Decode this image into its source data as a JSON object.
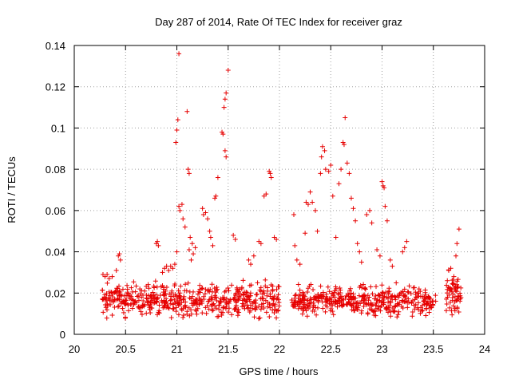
{
  "chart_data": {
    "type": "scatter",
    "title": "Day 287 of 2014, Rate Of TEC Index for receiver graz",
    "xlabel": "GPS time / hours",
    "ylabel": "ROTI / TECUs",
    "xlim": [
      20,
      24
    ],
    "ylim": [
      0,
      0.14
    ],
    "grid": true,
    "marker": "+",
    "color": "#e60000",
    "xticks": [
      20,
      20.5,
      21,
      21.5,
      22,
      22.5,
      23,
      23.5,
      24
    ],
    "xtick_labels": [
      "20",
      "20.5",
      "21",
      "21.5",
      "22",
      "22.5",
      "23",
      "23.5",
      "24"
    ],
    "yticks": [
      0,
      0.02,
      0.04,
      0.06,
      0.08,
      0.1,
      0.12,
      0.14
    ],
    "ytick_labels": [
      "0",
      "0.02",
      "0.04",
      "0.06",
      "0.08",
      "0.1",
      "0.12",
      "0.14"
    ],
    "clusters": [
      {
        "x_start": 20.27,
        "x_end": 22.0,
        "y_low": 0.005,
        "y_high": 0.028,
        "count": 520
      },
      {
        "x_start": 22.12,
        "x_end": 23.53,
        "y_low": 0.007,
        "y_high": 0.026,
        "count": 440
      },
      {
        "x_start": 23.62,
        "x_end": 23.77,
        "y_low": 0.003,
        "y_high": 0.033,
        "count": 60
      }
    ],
    "series": [
      {
        "name": "ROTI peaks",
        "points": [
          [
            20.28,
            0.029
          ],
          [
            20.3,
            0.028
          ],
          [
            20.32,
            0.029
          ],
          [
            20.34,
            0.027
          ],
          [
            20.37,
            0.028
          ],
          [
            20.43,
            0.038
          ],
          [
            20.44,
            0.039
          ],
          [
            20.45,
            0.036
          ],
          [
            20.41,
            0.031
          ],
          [
            20.8,
            0.044
          ],
          [
            20.81,
            0.045
          ],
          [
            20.82,
            0.043
          ],
          [
            20.86,
            0.03
          ],
          [
            20.88,
            0.032
          ],
          [
            20.9,
            0.033
          ],
          [
            20.92,
            0.031
          ],
          [
            20.94,
            0.033
          ],
          [
            20.96,
            0.032
          ],
          [
            20.98,
            0.034
          ],
          [
            21.0,
            0.04
          ],
          [
            20.99,
            0.093
          ],
          [
            21.0,
            0.099
          ],
          [
            21.01,
            0.104
          ],
          [
            21.02,
            0.136
          ],
          [
            21.02,
            0.062
          ],
          [
            21.03,
            0.06
          ],
          [
            21.05,
            0.063
          ],
          [
            21.06,
            0.056
          ],
          [
            21.08,
            0.052
          ],
          [
            21.1,
            0.108
          ],
          [
            21.11,
            0.08
          ],
          [
            21.12,
            0.078
          ],
          [
            21.13,
            0.047
          ],
          [
            21.15,
            0.044
          ],
          [
            21.12,
            0.041
          ],
          [
            21.14,
            0.036
          ],
          [
            21.16,
            0.039
          ],
          [
            21.18,
            0.042
          ],
          [
            21.25,
            0.061
          ],
          [
            21.26,
            0.058
          ],
          [
            21.28,
            0.059
          ],
          [
            21.3,
            0.056
          ],
          [
            21.32,
            0.05
          ],
          [
            21.33,
            0.047
          ],
          [
            21.35,
            0.043
          ],
          [
            21.37,
            0.066
          ],
          [
            21.38,
            0.067
          ],
          [
            21.4,
            0.076
          ],
          [
            21.44,
            0.098
          ],
          [
            21.45,
            0.097
          ],
          [
            21.46,
            0.11
          ],
          [
            21.47,
            0.114
          ],
          [
            21.48,
            0.117
          ],
          [
            21.5,
            0.128
          ],
          [
            21.47,
            0.089
          ],
          [
            21.48,
            0.086
          ],
          [
            21.55,
            0.048
          ],
          [
            21.57,
            0.046
          ],
          [
            21.7,
            0.036
          ],
          [
            21.72,
            0.034
          ],
          [
            21.75,
            0.038
          ],
          [
            21.8,
            0.045
          ],
          [
            21.82,
            0.044
          ],
          [
            21.85,
            0.067
          ],
          [
            21.87,
            0.068
          ],
          [
            21.9,
            0.079
          ],
          [
            21.91,
            0.078
          ],
          [
            21.92,
            0.076
          ],
          [
            21.95,
            0.047
          ],
          [
            21.97,
            0.046
          ],
          [
            22.14,
            0.058
          ],
          [
            22.15,
            0.043
          ],
          [
            22.17,
            0.036
          ],
          [
            22.2,
            0.034
          ],
          [
            22.25,
            0.049
          ],
          [
            22.26,
            0.064
          ],
          [
            22.28,
            0.063
          ],
          [
            22.3,
            0.069
          ],
          [
            22.32,
            0.064
          ],
          [
            22.35,
            0.06
          ],
          [
            22.37,
            0.05
          ],
          [
            22.4,
            0.078
          ],
          [
            22.41,
            0.086
          ],
          [
            22.42,
            0.091
          ],
          [
            22.44,
            0.089
          ],
          [
            22.45,
            0.08
          ],
          [
            22.48,
            0.079
          ],
          [
            22.5,
            0.082
          ],
          [
            22.52,
            0.067
          ],
          [
            22.55,
            0.047
          ],
          [
            22.58,
            0.073
          ],
          [
            22.6,
            0.08
          ],
          [
            22.62,
            0.093
          ],
          [
            22.63,
            0.092
          ],
          [
            22.64,
            0.105
          ],
          [
            22.66,
            0.083
          ],
          [
            22.68,
            0.078
          ],
          [
            22.7,
            0.066
          ],
          [
            22.72,
            0.061
          ],
          [
            22.74,
            0.055
          ],
          [
            22.76,
            0.044
          ],
          [
            22.78,
            0.04
          ],
          [
            22.8,
            0.035
          ],
          [
            22.85,
            0.058
          ],
          [
            22.88,
            0.06
          ],
          [
            22.9,
            0.054
          ],
          [
            22.95,
            0.041
          ],
          [
            22.98,
            0.038
          ],
          [
            23.0,
            0.074
          ],
          [
            23.01,
            0.072
          ],
          [
            23.02,
            0.071
          ],
          [
            23.03,
            0.062
          ],
          [
            23.05,
            0.055
          ],
          [
            23.08,
            0.036
          ],
          [
            23.1,
            0.033
          ],
          [
            23.2,
            0.04
          ],
          [
            23.22,
            0.042
          ],
          [
            23.24,
            0.045
          ],
          [
            23.65,
            0.031
          ],
          [
            23.67,
            0.032
          ],
          [
            23.7,
            0.028
          ],
          [
            23.72,
            0.038
          ],
          [
            23.73,
            0.044
          ],
          [
            23.75,
            0.051
          ]
        ]
      }
    ]
  }
}
